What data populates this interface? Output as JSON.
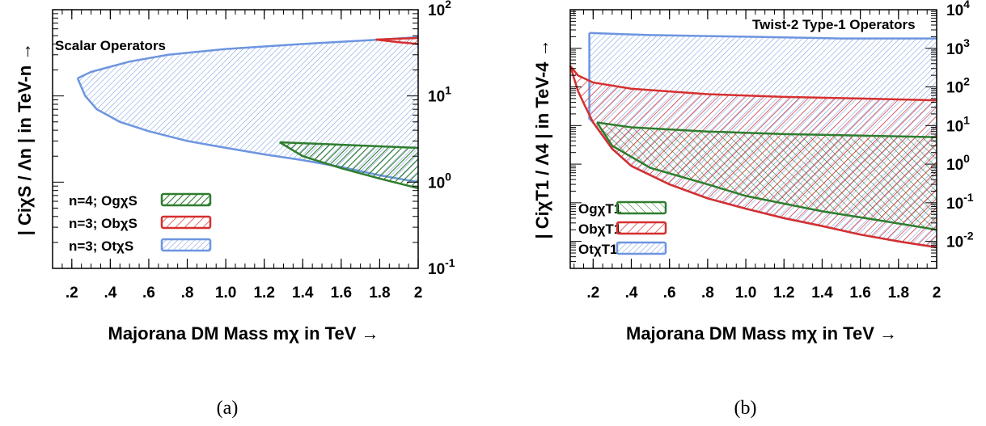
{
  "chart_data": [
    {
      "type": "area",
      "title": "Scalar Operators",
      "caption": "(a)",
      "xlabel": "Majorana DM Mass mχ in TeV →",
      "ylabel": "| CiχS / Λn | in  TeV-n →",
      "xlim": [
        0.1,
        2.0
      ],
      "ylim": [
        0.1,
        100
      ],
      "yscale": "log",
      "xticks": [
        ".2",
        ".4",
        ".6",
        ".8",
        "1.0",
        "1.2",
        "1.4",
        "1.6",
        "1.8",
        "2"
      ],
      "yticks": [
        "10-1",
        "100",
        "101",
        "102"
      ],
      "legend_position": "bottom-left",
      "series": [
        {
          "name": "n=4; OgχS",
          "color": "#2e7d2e",
          "hatch": "dense",
          "upper": [
            [
              1.28,
              2.9
            ],
            [
              2.0,
              2.5
            ]
          ],
          "lower": [
            [
              1.28,
              2.9
            ],
            [
              1.4,
              2.0
            ],
            [
              1.6,
              1.45
            ],
            [
              1.8,
              1.1
            ],
            [
              2.0,
              0.85
            ]
          ]
        },
        {
          "name": "n=3; ObχS",
          "color": "#d62f2f",
          "hatch": "wide",
          "upper": [
            [
              1.78,
              45
            ],
            [
              2.0,
              47
            ]
          ],
          "lower": [
            [
              1.78,
              45
            ],
            [
              1.9,
              42
            ],
            [
              2.0,
              40
            ]
          ]
        },
        {
          "name": "n=3; OtχS",
          "color": "#6d95e0",
          "hatch": "fine",
          "upper": [
            [
              0.23,
              16
            ],
            [
              0.3,
              19
            ],
            [
              0.5,
              25
            ],
            [
              0.7,
              30
            ],
            [
              1.0,
              35
            ],
            [
              1.4,
              40
            ],
            [
              1.8,
              45
            ],
            [
              2.0,
              48
            ]
          ],
          "lower": [
            [
              0.23,
              16
            ],
            [
              0.27,
              10
            ],
            [
              0.33,
              7
            ],
            [
              0.45,
              5
            ],
            [
              0.6,
              3.9
            ],
            [
              0.8,
              3.0
            ],
            [
              1.0,
              2.5
            ],
            [
              1.2,
              2.1
            ],
            [
              1.4,
              1.8
            ],
            [
              1.6,
              1.5
            ],
            [
              1.8,
              1.2
            ],
            [
              2.0,
              1.0
            ]
          ]
        }
      ]
    },
    {
      "type": "area",
      "title": "Twist-2 Type-1 Operators",
      "caption": "(b)",
      "xlabel": "Majorana DM Mass mχ in TeV →",
      "ylabel": "| CiχT1 / Λ4 | in  TeV-4 →",
      "xlim": [
        0.08,
        2.0
      ],
      "ylim": [
        0.002,
        10000
      ],
      "yscale": "log",
      "xticks": [
        ".2",
        ".4",
        ".6",
        ".8",
        "1.0",
        "1.2",
        "1.4",
        "1.6",
        "1.8",
        "2"
      ],
      "yticks": [
        "10-2",
        "10-1",
        "100",
        "101",
        "102",
        "103",
        "104"
      ],
      "legend_position": "bottom-left",
      "series": [
        {
          "name": "OgχT1",
          "color": "#2e7d2e",
          "hatch": "cross",
          "upper": [
            [
              0.22,
              12
            ],
            [
              0.4,
              9
            ],
            [
              0.8,
              7
            ],
            [
              1.2,
              6
            ],
            [
              1.6,
              5.5
            ],
            [
              2.0,
              5
            ]
          ],
          "lower": [
            [
              0.22,
              12
            ],
            [
              0.3,
              3
            ],
            [
              0.5,
              0.8
            ],
            [
              0.8,
              0.3
            ],
            [
              1.0,
              0.15
            ],
            [
              1.4,
              0.06
            ],
            [
              1.7,
              0.035
            ],
            [
              2.0,
              0.02
            ]
          ]
        },
        {
          "name": "ObχT1",
          "color": "#d62f2f",
          "hatch": "wide",
          "upper": [
            [
              0.08,
              350
            ],
            [
              0.12,
              200
            ],
            [
              0.2,
              130
            ],
            [
              0.4,
              90
            ],
            [
              0.8,
              65
            ],
            [
              1.2,
              55
            ],
            [
              1.6,
              50
            ],
            [
              2.0,
              45
            ]
          ],
          "lower": [
            [
              0.08,
              350
            ],
            [
              0.12,
              80
            ],
            [
              0.16,
              30
            ],
            [
              0.2,
              12
            ],
            [
              0.3,
              2.5
            ],
            [
              0.4,
              0.9
            ],
            [
              0.6,
              0.3
            ],
            [
              0.8,
              0.13
            ],
            [
              1.0,
              0.07
            ],
            [
              1.2,
              0.04
            ],
            [
              1.4,
              0.025
            ],
            [
              1.6,
              0.015
            ],
            [
              1.8,
              0.01
            ],
            [
              2.0,
              0.007
            ]
          ]
        },
        {
          "name": "OtχT1",
          "color": "#6d95e0",
          "hatch": "fine",
          "upper": [
            [
              0.18,
              2500
            ],
            [
              0.5,
              2200
            ],
            [
              1.0,
              2000
            ],
            [
              1.5,
              1800
            ],
            [
              2.0,
              1800
            ]
          ],
          "lower": [
            [
              0.18,
              2500
            ],
            [
              0.18,
              15
            ],
            [
              0.2,
              12
            ],
            [
              0.3,
              2.5
            ],
            [
              0.4,
              0.9
            ],
            [
              0.6,
              0.3
            ],
            [
              0.8,
              0.13
            ],
            [
              1.0,
              0.07
            ],
            [
              1.2,
              0.04
            ],
            [
              1.4,
              0.025
            ],
            [
              1.6,
              0.015
            ],
            [
              1.8,
              0.01
            ],
            [
              2.0,
              0.007
            ]
          ]
        }
      ]
    }
  ]
}
